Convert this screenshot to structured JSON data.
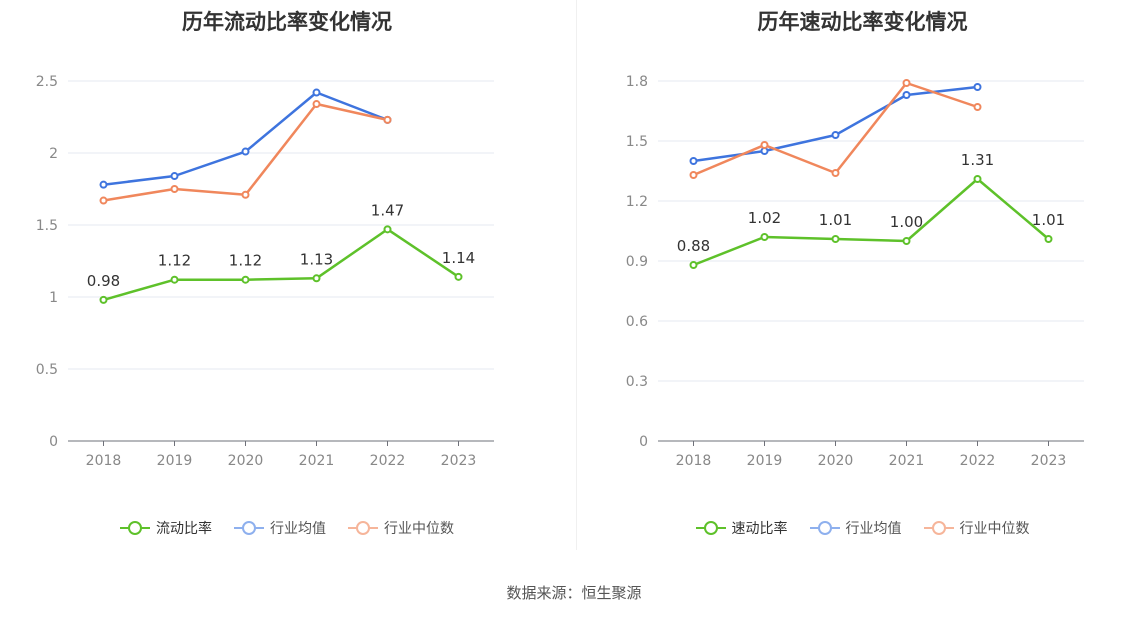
{
  "source": "数据来源：恒生聚源",
  "chart_data": [
    {
      "type": "line",
      "title": "历年流动比率变化情况",
      "categories": [
        "2018",
        "2019",
        "2020",
        "2021",
        "2022",
        "2023"
      ],
      "ylim": [
        0,
        2.5
      ],
      "yticks": [
        "0",
        "0.5",
        "1",
        "1.5",
        "2",
        "2.5"
      ],
      "ytick_values": [
        0,
        0.5,
        1,
        1.5,
        2,
        2.5
      ],
      "grid": true,
      "legend_position": "bottom",
      "series": [
        {
          "name": "流动比率",
          "color": "#5ec12a",
          "values": [
            0.98,
            1.12,
            1.12,
            1.13,
            1.47,
            1.14
          ],
          "labels": [
            "0.98",
            "1.12",
            "1.12",
            "1.13",
            "1.47",
            "1.14"
          ]
        },
        {
          "name": "行业均值",
          "color": "#3e74de",
          "values": [
            1.78,
            1.84,
            2.01,
            2.42,
            2.23,
            null
          ]
        },
        {
          "name": "行业中位数",
          "color": "#f0875c",
          "values": [
            1.67,
            1.75,
            1.71,
            2.34,
            2.23,
            null
          ]
        }
      ]
    },
    {
      "type": "line",
      "title": "历年速动比率变化情况",
      "categories": [
        "2018",
        "2019",
        "2020",
        "2021",
        "2022",
        "2023"
      ],
      "ylim": [
        0,
        1.8
      ],
      "yticks": [
        "0",
        "0.3",
        "0.6",
        "0.9",
        "1.2",
        "1.5",
        "1.8"
      ],
      "ytick_values": [
        0,
        0.3,
        0.6,
        0.9,
        1.2,
        1.5,
        1.8
      ],
      "grid": true,
      "legend_position": "bottom",
      "series": [
        {
          "name": "速动比率",
          "color": "#5ec12a",
          "values": [
            0.88,
            1.02,
            1.01,
            1.0,
            1.31,
            1.01
          ],
          "labels": [
            "0.88",
            "1.02",
            "1.01",
            "1.00",
            "1.31",
            "1.01"
          ]
        },
        {
          "name": "行业均值",
          "color": "#3e74de",
          "values": [
            1.4,
            1.45,
            1.53,
            1.73,
            1.77,
            null
          ]
        },
        {
          "name": "行业中位数",
          "color": "#f0875c",
          "values": [
            1.33,
            1.48,
            1.34,
            1.79,
            1.67,
            null
          ]
        }
      ]
    }
  ]
}
